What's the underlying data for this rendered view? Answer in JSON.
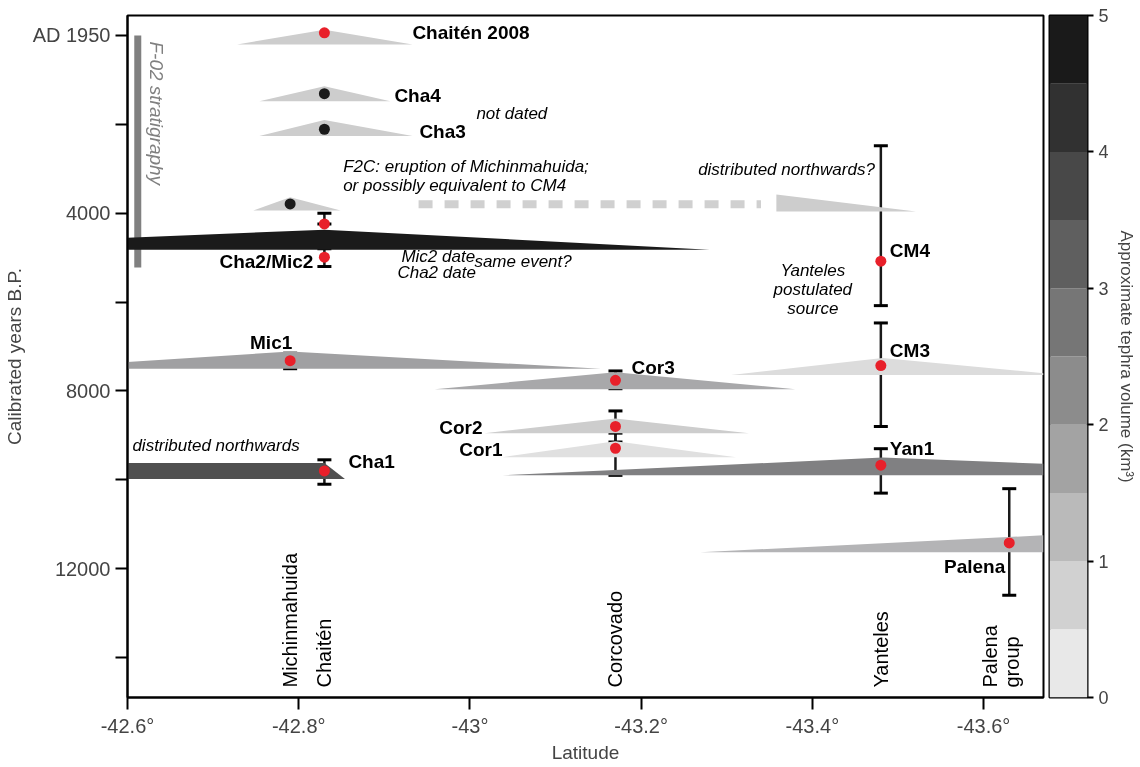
{
  "chart_data": [
    {
      "type": "scatter",
      "xlabel": "Latitude",
      "ylabel": "Calibrated years B.P.",
      "xlim": [
        -42.6,
        -43.67
      ],
      "ylim": [
        14900,
        -450
      ],
      "xticks": [
        {
          "value": -42.6,
          "label": "-42.6°"
        },
        {
          "value": -42.8,
          "label": "-42.8°"
        },
        {
          "value": -43,
          "label": "-43°"
        },
        {
          "value": -43.2,
          "label": "-43.2°"
        },
        {
          "value": -43.4,
          "label": "-43.4°"
        },
        {
          "value": -43.6,
          "label": "-43.6°"
        }
      ],
      "yticks": [
        {
          "value": 0,
          "label": "AD 1950"
        },
        {
          "value": 2000,
          "label": null
        },
        4000,
        {
          "value": 6000,
          "label": null
        },
        8000,
        {
          "value": 10000,
          "label": null
        },
        12000,
        {
          "value": 14000,
          "label": null
        }
      ],
      "grid": false,
      "series": [
        {
          "type": "line",
          "name": "F-02 stratigraphy",
          "color": "#808080",
          "x": [
            -42.612,
            -42.612
          ],
          "values": [
            0,
            5220
          ]
        },
        {
          "type": "line",
          "line_style": "dashed",
          "color": "#d0d0d0",
          "x": [
            -42.94,
            -43.34
          ],
          "values": [
            3800,
            3800
          ]
        },
        {
          "type": "area",
          "color": "#cdcdcd",
          "x": [
            -42.728,
            -42.83,
            -42.933
          ],
          "values": [
            200,
            -130,
            200
          ]
        },
        {
          "type": "area",
          "color": "#cdcdcd",
          "x": [
            -42.754,
            -42.83,
            -42.907
          ],
          "values": [
            1480,
            1140,
            1480
          ]
        },
        {
          "type": "area",
          "color": "#cdcdcd",
          "x": [
            -42.754,
            -42.83,
            -42.933
          ],
          "values": [
            2260,
            1900,
            2260
          ]
        },
        {
          "type": "area",
          "color": "#cdcdcd",
          "x": [
            -42.747,
            -42.79,
            -42.849
          ],
          "values": [
            3940,
            3640,
            3940
          ]
        },
        {
          "type": "area",
          "color": "#cdcdcd",
          "x": [
            -43.358,
            -43.358,
            -43.521
          ],
          "values": [
            3960,
            3580,
            3960
          ]
        },
        {
          "type": "area",
          "color": "#1a1a1a",
          "x": [
            -42.6,
            -42.6,
            -42.83,
            -43.28
          ],
          "values": [
            4820,
            4550,
            4370,
            4820
          ]
        },
        {
          "type": "area",
          "color": "#a0a0a2",
          "x": [
            -42.6,
            -42.6,
            -42.79,
            -43.153
          ],
          "values": [
            7500,
            7350,
            7110,
            7500
          ]
        },
        {
          "type": "area",
          "color": "#a8a8aa",
          "x": [
            -42.959,
            -43.17,
            -43.38
          ],
          "values": [
            7960,
            7580,
            7960
          ]
        },
        {
          "type": "area",
          "color": "#cdcdcd",
          "x": [
            -43.017,
            -43.17,
            -43.326
          ],
          "values": [
            8950,
            8620,
            8950
          ]
        },
        {
          "type": "area",
          "color": "#e0e0e0",
          "x": [
            -43.038,
            -43.17,
            -43.311
          ],
          "values": [
            9490,
            9130,
            9490
          ]
        },
        {
          "type": "area",
          "color": "#505050",
          "x": [
            -42.6,
            -42.6,
            -42.83,
            -42.854
          ],
          "values": [
            9980,
            9620,
            9620,
            9980
          ]
        },
        {
          "type": "area",
          "color": "#808082",
          "x": [
            -43.038,
            -43.482,
            -43.67,
            -43.67
          ],
          "values": [
            9900,
            9500,
            9640,
            9900
          ]
        },
        {
          "type": "area",
          "color": "#dcdcdc",
          "x": [
            -43.305,
            -43.482,
            -43.67,
            -43.67
          ],
          "values": [
            7640,
            7260,
            7600,
            7640
          ]
        },
        {
          "type": "area",
          "color": "#b4b4b6",
          "x": [
            -43.269,
            -43.67,
            -43.67
          ],
          "values": [
            11630,
            11250,
            11630
          ]
        },
        {
          "color": "#1a1a1a",
          "x": [
            -42.83,
            -42.83,
            -42.79
          ],
          "values": [
            1310,
            2110,
            3790
          ]
        },
        {
          "color": "#e8202a",
          "x": [
            -42.83,
            -42.83,
            -42.83,
            -42.79,
            -43.17,
            -43.17,
            -43.17,
            -42.83,
            -43.48,
            -43.48,
            -43.48,
            -43.63
          ],
          "values": [
            -60,
            4240,
            4990,
            7320,
            7760,
            8800,
            9290,
            9800,
            5080,
            7430,
            9670,
            11420
          ],
          "errors": [
            null,
            [
              4000,
              4240
            ],
            [
              4800,
              5200
            ],
            [
              7150,
              7500
            ],
            [
              7550,
              7950
            ],
            [
              8450,
              9150
            ],
            [
              8950,
              9900
            ],
            [
              9550,
              10100
            ],
            [
              2480,
              6080
            ],
            [
              6470,
              8800
            ],
            [
              9300,
              10300
            ],
            [
              10200,
              12600
            ]
          ]
        }
      ],
      "annotations": [
        "Chaitén 2008",
        "Cha4",
        "Cha3",
        "not dated",
        "F2C: eruption of Michinmahuida;\nor possibly equivalent to CM4",
        "distributed northwards?",
        "Cha2/Mic2",
        "Mic2 date",
        "Cha2 date",
        "same event?",
        "Yanteles\npostulated\nsource",
        "CM4",
        "CM3",
        "Mic1",
        "Cor3",
        "Cor2",
        "Cor1",
        "distributed northwards",
        "Cha1",
        "Yan1",
        "Palena",
        "Michinmahuida",
        "Chaitén",
        "Corcovado",
        "Yanteles",
        "Palena\ngroup"
      ]
    },
    {
      "type": "bar",
      "stacked": true,
      "ylabel": "Approximate tephra volume (km³)",
      "categories": [
        null
      ],
      "ylim": [
        0,
        5
      ],
      "yticks": [
        0,
        1,
        2,
        3,
        4,
        5
      ],
      "series": [
        {
          "color": "#e8e8e8",
          "values": [
            0.5
          ]
        },
        {
          "color": "#d1d1d1",
          "values": [
            0.5
          ]
        },
        {
          "color": "#bababa",
          "values": [
            0.5
          ]
        },
        {
          "color": "#a3a3a3",
          "values": [
            0.5
          ]
        },
        {
          "color": "#8c8c8c",
          "values": [
            0.5
          ]
        },
        {
          "color": "#767676",
          "values": [
            0.5
          ]
        },
        {
          "color": "#5f5f5f",
          "values": [
            0.5
          ]
        },
        {
          "color": "#484848",
          "values": [
            0.5
          ]
        },
        {
          "color": "#313131",
          "values": [
            0.5
          ]
        },
        {
          "color": "#1a1a1a",
          "values": [
            0.5
          ]
        }
      ]
    }
  ]
}
